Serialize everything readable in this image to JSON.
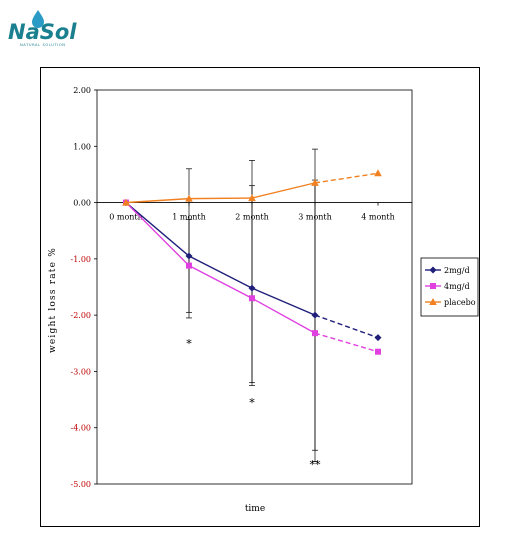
{
  "brand": {
    "name": "NaSol",
    "tagline": "NATURAL SOLUTION",
    "colors": {
      "teal": "#1a7f8e",
      "drop": "#2a9bc4"
    }
  },
  "chart_data": {
    "type": "line",
    "title": "",
    "xlabel": "time",
    "ylabel": "weight loss rate %",
    "categories": [
      "0 month",
      "1 month",
      "2 month",
      "3 month",
      "4 month"
    ],
    "ylim": [
      -5.0,
      2.0
    ],
    "yticks": [
      "2.00",
      "1.00",
      "0.00",
      "-1.00",
      "-2.00",
      "-3.00",
      "-4.00",
      "-5.00"
    ],
    "grid": false,
    "legend_position": "right",
    "series": [
      {
        "name": "2mg/d",
        "color": "#1f1f7a",
        "marker": "diamond",
        "values": [
          0,
          -0.95,
          -1.52,
          -2.0,
          -2.4
        ],
        "dashed_last_segment": true
      },
      {
        "name": "4mg/d",
        "color": "#e040e0",
        "marker": "square",
        "values": [
          0,
          -1.12,
          -1.7,
          -2.32,
          -2.65
        ],
        "dashed_last_segment": true
      },
      {
        "name": "placebo",
        "color": "#f08020",
        "marker": "triangle",
        "values": [
          0,
          0.07,
          0.08,
          0.35,
          0.52
        ],
        "dashed_last_segment": true
      }
    ],
    "error_bars": [
      {
        "x_index": 1,
        "low": -1.95,
        "high": 0.6
      },
      {
        "x_index": 1,
        "low": -2.05,
        "high": -0.3
      },
      {
        "x_index": 2,
        "low": -3.2,
        "high": 0.75
      },
      {
        "x_index": 2,
        "low": -3.25,
        "high": 0.3
      },
      {
        "x_index": 3,
        "low": -4.4,
        "high": 0.95
      },
      {
        "x_index": 3,
        "low": -4.6,
        "high": 0.4
      }
    ],
    "annotations": [
      {
        "text": "*",
        "x_index": 1,
        "y": -2.5
      },
      {
        "text": "*",
        "x_index": 2,
        "y": -3.55
      },
      {
        "text": "**",
        "x_index": 3,
        "y": -4.65
      }
    ]
  }
}
